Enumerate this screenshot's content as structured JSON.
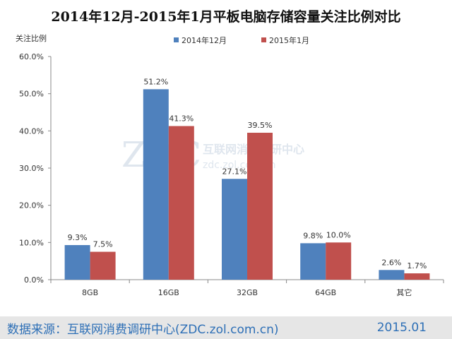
{
  "chart_data": {
    "type": "bar",
    "title": "2014年12月-2015年1月平板电脑存储容量关注比例对比",
    "ylabel": "关注比例",
    "xlabel": "",
    "categories": [
      "8GB",
      "16GB",
      "32GB",
      "64GB",
      "其它"
    ],
    "series": [
      {
        "name": "2014年12月",
        "color": "#4f81bd",
        "values": [
          9.3,
          51.2,
          27.1,
          9.8,
          2.6
        ]
      },
      {
        "name": "2015年1月",
        "color": "#c0504d",
        "values": [
          7.5,
          41.3,
          39.5,
          10.0,
          1.7
        ]
      }
    ],
    "ylim": [
      0,
      60
    ],
    "yticks": [
      "0.0%",
      "10.0%",
      "20.0%",
      "30.0%",
      "40.0%",
      "50.0%",
      "60.0%"
    ],
    "legend_position": "top",
    "grid": false
  },
  "watermark": {
    "logo": "ZDC",
    "text": "互联网消费调研中心",
    "url": "zdc.zol.com.cn"
  },
  "footer": {
    "source": "数据来源：互联网消费调研中心(ZDC.zol.com.cn)",
    "date": "2015.01"
  }
}
